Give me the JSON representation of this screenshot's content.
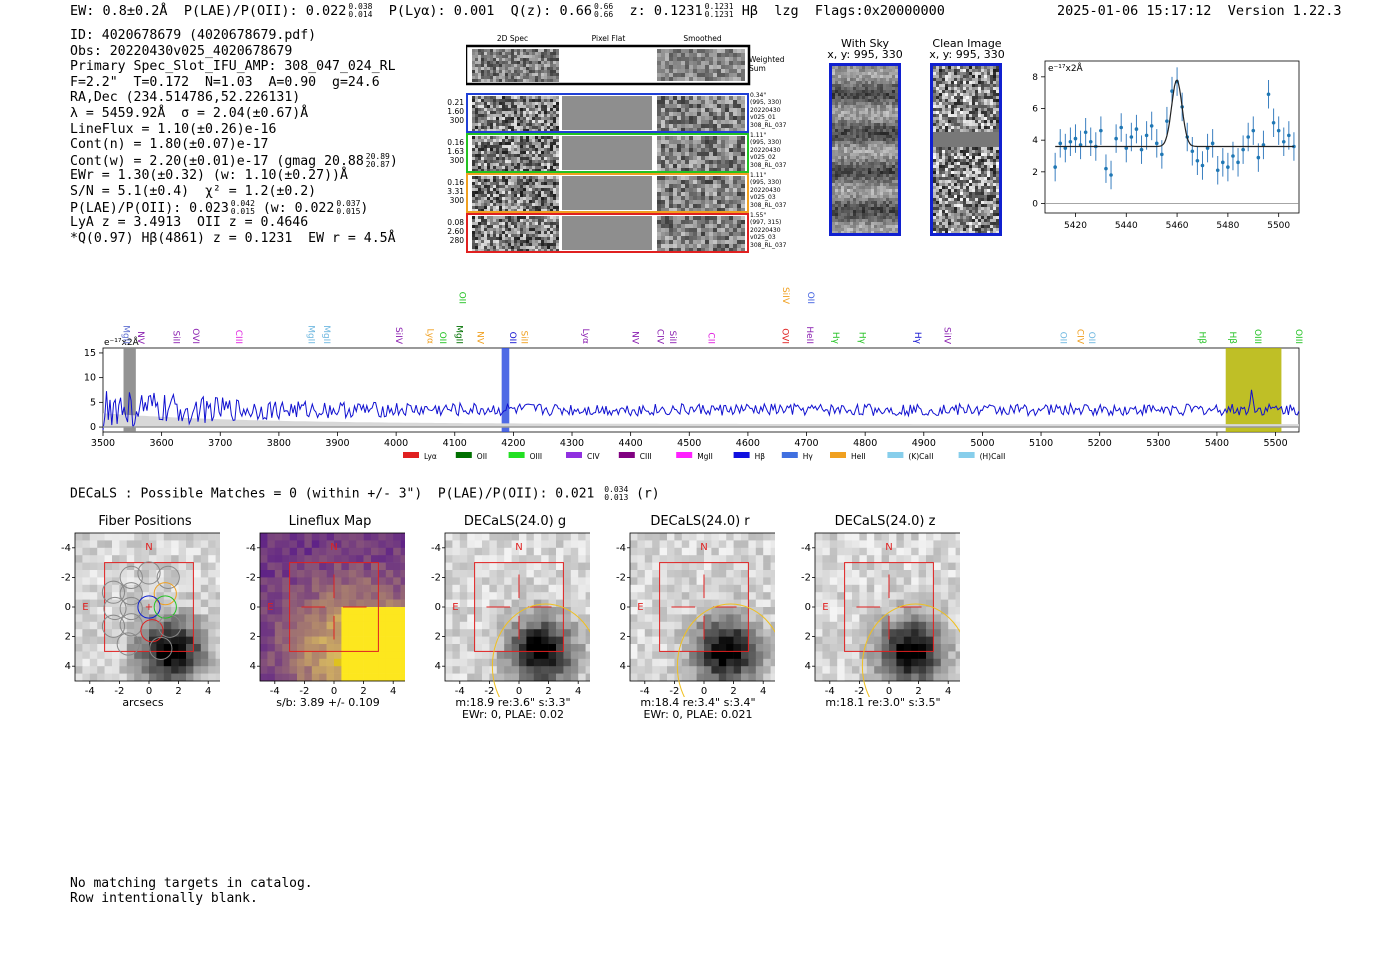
{
  "header": {
    "ew": "EW: 0.8±0.2Å",
    "plae_label": "P(LAE)/P(OII): 0.022",
    "plae_hi": "0.038",
    "plae_lo": "0.014",
    "plya": "P(Lyα): 0.001",
    "qz_label": "Q(z): 0.66",
    "qz_hi": "0.66",
    "qz_lo": "0.66",
    "z_label": "z: 0.1231",
    "z_hi": "0.1231",
    "z_lo": "0.1231",
    "line": "Hβ",
    "tag": "lzg",
    "flags": "Flags:0x20000000",
    "timestamp": "2025-01-06 15:17:12",
    "version": "Version 1.22.3"
  },
  "info": {
    "id": "ID: 4020678679 (4020678679.pdf)",
    "obs": "Obs: 20220430v025_4020678679",
    "primary": "Primary Spec_Slot_IFU_AMP: 308_047_024_RL",
    "params": "F=2.2\"  T=0.172  N=1.03  A=0.90  g=24.6",
    "radec": "RA,Dec (234.514786,52.226131)",
    "lambda": "λ = 5459.92Å  σ = 2.04(±0.67)Å",
    "lineflux": "LineFlux = 1.10(±0.26)e-16",
    "contn": "Cont(n) = 1.80(±0.07)e-17",
    "contw": "Cont(w) = 2.20(±0.01)e-17 (gmag 20.88",
    "gmag_hi": "20.89",
    "gmag_lo": "20.87",
    "ewr": "EWr = 1.30(±0.32) (w: 1.10(±0.27))Å",
    "sn": "S/N = 5.1(±0.4)  χ² = 1.2(±0.2)",
    "plae": "P(LAE)/P(OII): 0.023",
    "plae_hi": "0.042",
    "plae_lo": "0.015",
    "plae_w": "(w: 0.022",
    "plae_w_hi": "0.037",
    "plae_w_lo": "0.015",
    "lya_z": "LyA z = 3.4913  OII z = 0.4646",
    "q_line": "*Q(0.97) Hβ(4861) z = 0.1231  EW r = 4.5Å"
  },
  "cutouts": {
    "col_2d": "2D Spec",
    "col_flat": "Pixel Flat",
    "col_smooth": "Smoothed",
    "weighted": "Weighted Sum",
    "rows": [
      {
        "w": "0.21",
        "n": "1.60",
        "t": "300",
        "sep": "0.34\"",
        "xy": "(995, 330)",
        "date": "20220430",
        "shot": "v025_01",
        "amp": "308_RL_037",
        "color": "#1f3fd6"
      },
      {
        "w": "0.16",
        "n": "1.63",
        "t": "300",
        "sep": "1.11\"",
        "xy": "(995, 330)",
        "date": "20220430",
        "shot": "v025_02",
        "amp": "308_RL_037",
        "color": "#22c222"
      },
      {
        "w": "0.16",
        "n": "3.31",
        "t": "300",
        "sep": "1.11\"",
        "xy": "(995, 330)",
        "date": "20220430",
        "shot": "v025_03",
        "amp": "308_RL_037",
        "color": "#f0a020"
      },
      {
        "w": "0.08",
        "n": "2.60",
        "t": "280",
        "sep": "1.55\"",
        "xy": "(997, 315)",
        "date": "20220430",
        "shot": "v025_03",
        "amp": "308_RL_037",
        "color": "#e02020"
      }
    ]
  },
  "sky": {
    "with_sky": "With Sky",
    "with_sky_xy": "x, y: 995, 330",
    "clean": "Clean Image",
    "clean_xy": "x, y: 995, 330"
  },
  "zoom_chart": {
    "unit": "e⁻¹⁷x2Å",
    "xticks": [
      "5420",
      "5440",
      "5460",
      "5480",
      "5500"
    ],
    "yticks": [
      "0",
      "2",
      "4",
      "6",
      "8"
    ]
  },
  "chart_data": [
    {
      "type": "scatter",
      "title": "",
      "xlabel": "",
      "ylabel": "e⁻¹⁷x2Å",
      "xlim": [
        5408,
        5508
      ],
      "ylim": [
        -0.6,
        9.0
      ],
      "grid": false,
      "fit_continuum": 3.6,
      "fit_peak": 7.8,
      "fit_center": 5459.9,
      "fit_sigma": 2.04,
      "x": [
        5412,
        5414,
        5416,
        5418,
        5420,
        5422,
        5424,
        5426,
        5428,
        5430,
        5432,
        5434,
        5436,
        5438,
        5440,
        5442,
        5444,
        5446,
        5448,
        5450,
        5452,
        5454,
        5456,
        5458,
        5460,
        5462,
        5464,
        5466,
        5468,
        5470,
        5472,
        5474,
        5476,
        5478,
        5480,
        5482,
        5484,
        5486,
        5488,
        5490,
        5492,
        5494,
        5496,
        5498,
        5500,
        5502,
        5504,
        5506
      ],
      "y": [
        2.3,
        3.8,
        3.5,
        3.9,
        4.1,
        3.7,
        4.5,
        3.9,
        3.6,
        4.6,
        2.2,
        1.8,
        4.1,
        4.8,
        3.5,
        4.2,
        4.7,
        3.4,
        4.3,
        4.9,
        3.8,
        3.1,
        5.2,
        7.1,
        7.7,
        6.1,
        4.2,
        3.3,
        2.7,
        2.4,
        3.5,
        3.8,
        2.1,
        2.6,
        2.3,
        3.0,
        2.6,
        3.4,
        4.2,
        4.6,
        2.9,
        3.7,
        6.9,
        5.1,
        4.6,
        3.9,
        4.3,
        3.6
      ],
      "err": [
        0.9,
        0.9,
        0.9,
        0.9,
        0.9,
        0.9,
        0.9,
        0.9,
        0.9,
        0.9,
        0.9,
        0.9,
        0.9,
        0.9,
        0.9,
        0.9,
        0.9,
        0.9,
        0.9,
        0.9,
        0.9,
        0.9,
        0.9,
        0.9,
        0.9,
        0.9,
        0.9,
        0.9,
        0.9,
        0.9,
        0.9,
        0.9,
        0.9,
        0.9,
        0.9,
        0.9,
        0.9,
        0.9,
        0.9,
        0.9,
        0.9,
        0.9,
        0.9,
        0.9,
        0.9,
        0.9,
        0.9,
        0.9
      ]
    },
    {
      "type": "line",
      "title": "",
      "xlabel": "",
      "ylabel": "e⁻¹⁷x2Å",
      "xlim": [
        3500,
        5540
      ],
      "ylim": [
        -1,
        16
      ],
      "xticks": [
        "3500",
        "3600",
        "3700",
        "3800",
        "3900",
        "4000",
        "4100",
        "4200",
        "4300",
        "4400",
        "4500",
        "4600",
        "4700",
        "4800",
        "4900",
        "5000",
        "5100",
        "5200",
        "5300",
        "5400",
        "5500"
      ],
      "yticks": [
        "0",
        "5",
        "10",
        "15"
      ],
      "shaded": [
        {
          "x0": 3535,
          "x1": 3556,
          "color": "#808080"
        },
        {
          "x0": 4180,
          "x1": 4193,
          "color": "#3050e0"
        },
        {
          "x0": 5415,
          "x1": 5510,
          "color": "#b4b400"
        }
      ],
      "lines": [
        {
          "label": "MgII",
          "wave": 3530,
          "color": "#6070d0"
        },
        {
          "label": "NV",
          "wave": 3555,
          "color": "#8a1fb0"
        },
        {
          "label": "SiII",
          "wave": 3615,
          "color": "#8a1fb0"
        },
        {
          "label": "OVI",
          "wave": 3648,
          "color": "#8a1fb0"
        },
        {
          "label": "CIII",
          "wave": 3722,
          "color": "#e020e0"
        },
        {
          "label": "MgII",
          "wave": 3845,
          "color": "#70b8e0"
        },
        {
          "label": "MgII",
          "wave": 3872,
          "color": "#70b8e0"
        },
        {
          "label": "SiIV",
          "wave": 3995,
          "color": "#8a1fb0"
        },
        {
          "label": "Lyα",
          "wave": 4048,
          "color": "#f0a020"
        },
        {
          "label": "OII",
          "wave": 4070,
          "color": "#22c222"
        },
        {
          "label": "MgII",
          "wave": 4098,
          "color": "#007000"
        },
        {
          "label": "OII",
          "wave": 4103,
          "color": "#22c222",
          "upper": true
        },
        {
          "label": "NV",
          "wave": 4134,
          "color": "#f0a020"
        },
        {
          "label": "OII",
          "wave": 4189,
          "color": "#1010d0"
        },
        {
          "label": "SiII",
          "wave": 4209,
          "color": "#f0a020"
        },
        {
          "label": "Lyα",
          "wave": 4314,
          "color": "#8a1fb0"
        },
        {
          "label": "NV",
          "wave": 4398,
          "color": "#8a1fb0"
        },
        {
          "label": "CIV",
          "wave": 4441,
          "color": "#8a1fb0"
        },
        {
          "label": "SiII",
          "wave": 4462,
          "color": "#8a1fb0"
        },
        {
          "label": "CII",
          "wave": 4528,
          "color": "#e020e0"
        },
        {
          "label": "OVI",
          "wave": 4654,
          "color": "#e02020"
        },
        {
          "label": "SiIV",
          "wave": 4655,
          "color": "#f0a020",
          "upper": true
        },
        {
          "label": "HeII",
          "wave": 4696,
          "color": "#8a1fb0"
        },
        {
          "label": "OII",
          "wave": 4697,
          "color": "#4060e0",
          "upper": true
        },
        {
          "label": "Hγ",
          "wave": 4740,
          "color": "#22c222"
        },
        {
          "label": "Hγ",
          "wave": 4785,
          "color": "#22c222"
        },
        {
          "label": "Hγ",
          "wave": 4880,
          "color": "#1010d0"
        },
        {
          "label": "SiIV",
          "wave": 4930,
          "color": "#8a1fb0"
        },
        {
          "label": "OII",
          "wave": 5128,
          "color": "#70b8e0"
        },
        {
          "label": "CIV",
          "wave": 5157,
          "color": "#f0a020"
        },
        {
          "label": "OII",
          "wave": 5177,
          "color": "#70b8e0"
        },
        {
          "label": "Hβ",
          "wave": 5365,
          "color": "#22c222"
        },
        {
          "label": "Hβ",
          "wave": 5417,
          "color": "#22c222"
        },
        {
          "label": "OIII",
          "wave": 5460,
          "color": "#22c222"
        },
        {
          "label": "OIII",
          "wave": 5530,
          "color": "#22c222"
        }
      ],
      "series": [
        {
          "name": "spectrum",
          "color": "#1010d0"
        },
        {
          "name": "error",
          "color": "#b0b0b0"
        }
      ]
    }
  ],
  "spectrum": {
    "unit": "e⁻¹⁷x2Å",
    "legend": [
      {
        "label": "Lyα",
        "color": "#e02020"
      },
      {
        "label": "OII",
        "color": "#007000"
      },
      {
        "label": "OIII",
        "color": "#22e022"
      },
      {
        "label": "CIV",
        "color": "#9030e0"
      },
      {
        "label": "CIII",
        "color": "#800080"
      },
      {
        "label": "MgII",
        "color": "#ff20ff"
      },
      {
        "label": "Hβ",
        "color": "#1010e0"
      },
      {
        "label": "Hγ",
        "color": "#4070e0"
      },
      {
        "label": "HeII",
        "color": "#f0a020"
      },
      {
        "label": "(K)CaII",
        "color": "#87ceeb"
      },
      {
        "label": "(H)CaII",
        "color": "#87ceeb"
      }
    ]
  },
  "decals": {
    "summary": "DECaLS : Possible Matches = 0 (within +/- 3\")  P(LAE)/P(OII): 0.021",
    "plae_hi": "0.034",
    "plae_lo": "0.013",
    "band": "(r)",
    "north": "N",
    "east": "E",
    "ticks": [
      "-4",
      "-2",
      "0",
      "2",
      "4"
    ],
    "panels": [
      {
        "title": "Fiber Positions",
        "cap1": "arcsecs",
        "cap2": ""
      },
      {
        "title": "Lineflux Map",
        "cap1": "s/b: 3.89 +/- 0.109",
        "cap2": ""
      },
      {
        "title": "DECaLS(24.0) g",
        "cap1": "m:18.9  re:3.6\"  s:3.3\"",
        "cap2": "EWr: 0, PLAE: 0.02"
      },
      {
        "title": "DECaLS(24.0) r",
        "cap1": "m:18.4  re:3.4\"  s:3.4\"",
        "cap2": "EWr: 0, PLAE: 0.021"
      },
      {
        "title": "DECaLS(24.0) z",
        "cap1": "m:18.1  re:3.0\"  s:3.5\"",
        "cap2": ""
      }
    ]
  },
  "footer": {
    "line1": "No matching targets in catalog.",
    "line2": "Row intentionally blank."
  }
}
